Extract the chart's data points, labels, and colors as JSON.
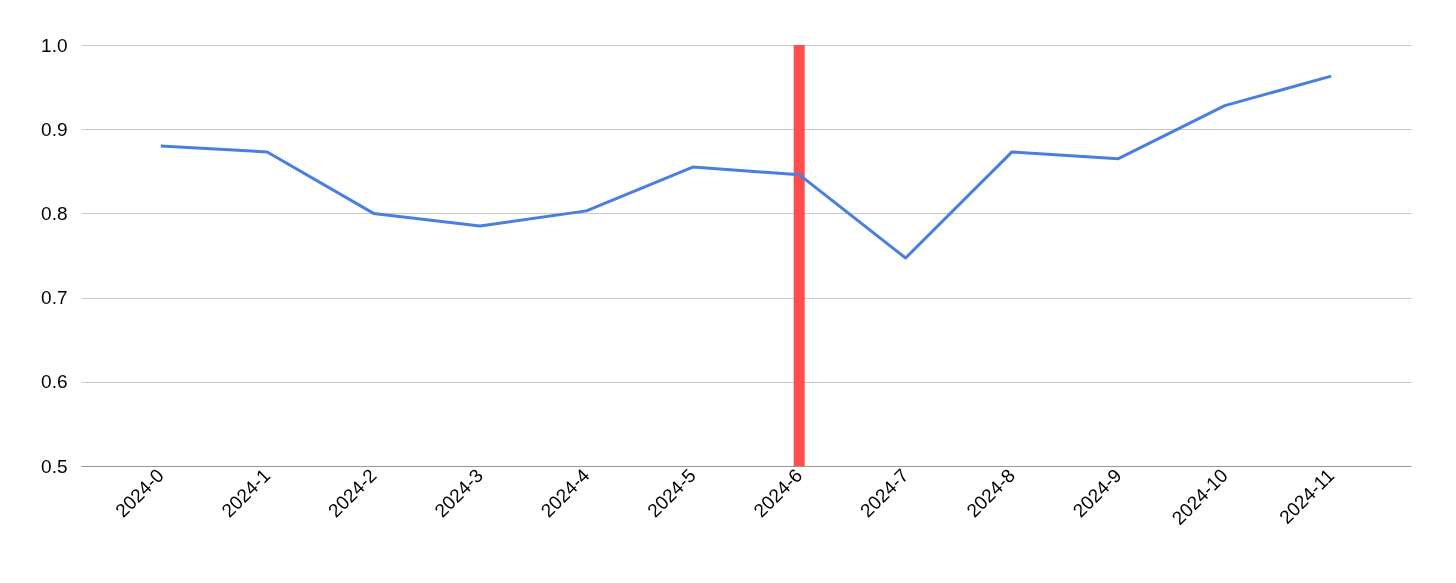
{
  "chart_data": {
    "type": "line",
    "categories": [
      "2024-0",
      "2024-1",
      "2024-2",
      "2024-3",
      "2024-4",
      "2024-5",
      "2024-6",
      "2024-7",
      "2024-8",
      "2024-9",
      "2024-10",
      "2024-11"
    ],
    "series": [
      {
        "color": "#4a7fe0",
        "values": [
          0.88,
          0.873,
          0.8,
          0.785,
          0.803,
          0.855,
          0.846,
          0.747,
          0.873,
          0.865,
          0.928,
          0.963
        ]
      }
    ],
    "ylim": [
      0.5,
      1.0
    ],
    "yticks": [
      0.5,
      0.6,
      0.7,
      0.8,
      0.9,
      {
        "value": 1.0,
        "label": "1.0"
      }
    ],
    "grid": "y",
    "ref_lines": [
      {
        "axis": "x",
        "value": "2024-6",
        "color": "#ff4c4c"
      }
    ]
  }
}
